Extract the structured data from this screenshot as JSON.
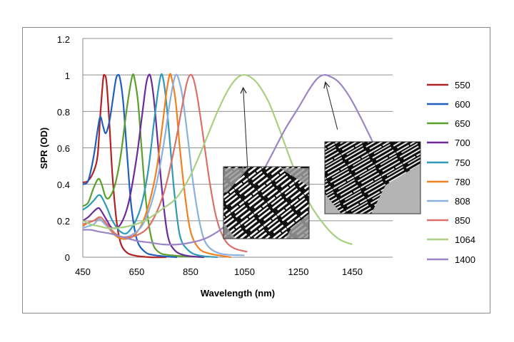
{
  "chart_data": {
    "type": "line",
    "title": "",
    "xlabel": "Wavelength (nm)",
    "ylabel": "SPR (OD)",
    "xlim": [
      450,
      1600
    ],
    "ylim": [
      0,
      1.2
    ],
    "x_ticks": [
      "450",
      "650",
      "850",
      "1050",
      "1250",
      "1450"
    ],
    "y_ticks": [
      "0",
      "0.2",
      "0.4",
      "0.6",
      "0.8",
      "1",
      "1.2"
    ],
    "grid": "horizontal",
    "legend_position": "right",
    "series": [
      {
        "name": "550",
        "color": "#b22222",
        "points": [
          [
            450,
            0.41
          ],
          [
            470,
            0.42
          ],
          [
            490,
            0.47
          ],
          [
            505,
            0.56
          ],
          [
            515,
            0.78
          ],
          [
            525,
            0.97
          ],
          [
            530,
            1.0
          ],
          [
            538,
            0.96
          ],
          [
            548,
            0.75
          ],
          [
            560,
            0.45
          ],
          [
            575,
            0.2
          ],
          [
            590,
            0.08
          ],
          [
            610,
            0.03
          ],
          [
            640,
            0.01
          ],
          [
            700,
            0.0
          ],
          [
            760,
            0.0
          ]
        ]
      },
      {
        "name": "600",
        "color": "#1f5fbf",
        "points": [
          [
            450,
            0.4
          ],
          [
            470,
            0.42
          ],
          [
            490,
            0.55
          ],
          [
            505,
            0.7
          ],
          [
            515,
            0.77
          ],
          [
            525,
            0.72
          ],
          [
            535,
            0.68
          ],
          [
            548,
            0.74
          ],
          [
            560,
            0.85
          ],
          [
            572,
            0.97
          ],
          [
            580,
            1.0
          ],
          [
            588,
            0.98
          ],
          [
            600,
            0.85
          ],
          [
            615,
            0.55
          ],
          [
            630,
            0.28
          ],
          [
            650,
            0.1
          ],
          [
            680,
            0.03
          ],
          [
            720,
            0.01
          ],
          [
            800,
            0.0
          ]
        ]
      },
      {
        "name": "650",
        "color": "#5aa02c",
        "points": [
          [
            450,
            0.28
          ],
          [
            470,
            0.3
          ],
          [
            490,
            0.38
          ],
          [
            508,
            0.43
          ],
          [
            520,
            0.4
          ],
          [
            535,
            0.33
          ],
          [
            550,
            0.33
          ],
          [
            570,
            0.4
          ],
          [
            590,
            0.55
          ],
          [
            610,
            0.78
          ],
          [
            625,
            0.93
          ],
          [
            635,
            1.0
          ],
          [
            642,
            0.98
          ],
          [
            655,
            0.85
          ],
          [
            668,
            0.6
          ],
          [
            685,
            0.3
          ],
          [
            705,
            0.1
          ],
          [
            730,
            0.03
          ],
          [
            780,
            0.01
          ],
          [
            900,
            0.0
          ]
        ]
      },
      {
        "name": "700",
        "color": "#6a2c9c",
        "points": [
          [
            450,
            0.2
          ],
          [
            470,
            0.22
          ],
          [
            490,
            0.25
          ],
          [
            508,
            0.27
          ],
          [
            520,
            0.25
          ],
          [
            540,
            0.2
          ],
          [
            560,
            0.16
          ],
          [
            590,
            0.18
          ],
          [
            620,
            0.3
          ],
          [
            650,
            0.55
          ],
          [
            670,
            0.78
          ],
          [
            685,
            0.95
          ],
          [
            695,
            1.0
          ],
          [
            703,
            0.98
          ],
          [
            715,
            0.85
          ],
          [
            730,
            0.6
          ],
          [
            745,
            0.35
          ],
          [
            765,
            0.12
          ],
          [
            790,
            0.04
          ],
          [
            830,
            0.01
          ],
          [
            900,
            0.0
          ]
        ]
      },
      {
        "name": "750",
        "color": "#2e9ab8",
        "points": [
          [
            450,
            0.26
          ],
          [
            470,
            0.28
          ],
          [
            490,
            0.31
          ],
          [
            508,
            0.34
          ],
          [
            520,
            0.33
          ],
          [
            540,
            0.27
          ],
          [
            560,
            0.2
          ],
          [
            590,
            0.14
          ],
          [
            620,
            0.14
          ],
          [
            660,
            0.25
          ],
          [
            690,
            0.45
          ],
          [
            715,
            0.75
          ],
          [
            730,
            0.92
          ],
          [
            740,
            1.0
          ],
          [
            748,
            0.98
          ],
          [
            760,
            0.85
          ],
          [
            775,
            0.6
          ],
          [
            790,
            0.35
          ],
          [
            810,
            0.12
          ],
          [
            840,
            0.04
          ],
          [
            880,
            0.01
          ],
          [
            950,
            0.0
          ]
        ]
      },
      {
        "name": "780",
        "color": "#f08020",
        "points": [
          [
            450,
            0.17
          ],
          [
            470,
            0.19
          ],
          [
            490,
            0.2
          ],
          [
            510,
            0.21
          ],
          [
            520,
            0.2
          ],
          [
            540,
            0.17
          ],
          [
            570,
            0.12
          ],
          [
            600,
            0.1
          ],
          [
            640,
            0.12
          ],
          [
            680,
            0.22
          ],
          [
            720,
            0.45
          ],
          [
            745,
            0.72
          ],
          [
            760,
            0.9
          ],
          [
            772,
            1.0
          ],
          [
            780,
            0.98
          ],
          [
            795,
            0.85
          ],
          [
            810,
            0.6
          ],
          [
            830,
            0.33
          ],
          [
            850,
            0.14
          ],
          [
            880,
            0.05
          ],
          [
            920,
            0.02
          ],
          [
            1000,
            0.0
          ]
        ]
      },
      {
        "name": "808",
        "color": "#8ab0e0",
        "points": [
          [
            450,
            0.16
          ],
          [
            470,
            0.17
          ],
          [
            490,
            0.18
          ],
          [
            510,
            0.21
          ],
          [
            520,
            0.2
          ],
          [
            540,
            0.17
          ],
          [
            570,
            0.13
          ],
          [
            600,
            0.11
          ],
          [
            640,
            0.13
          ],
          [
            680,
            0.2
          ],
          [
            720,
            0.38
          ],
          [
            750,
            0.62
          ],
          [
            770,
            0.82
          ],
          [
            785,
            0.95
          ],
          [
            795,
            1.0
          ],
          [
            805,
            0.98
          ],
          [
            820,
            0.88
          ],
          [
            840,
            0.65
          ],
          [
            860,
            0.4
          ],
          [
            885,
            0.18
          ],
          [
            910,
            0.07
          ],
          [
            960,
            0.02
          ],
          [
            1050,
            0.01
          ]
        ]
      },
      {
        "name": "850",
        "color": "#d9706a",
        "points": [
          [
            450,
            0.18
          ],
          [
            470,
            0.19
          ],
          [
            490,
            0.2
          ],
          [
            515,
            0.22
          ],
          [
            540,
            0.18
          ],
          [
            570,
            0.13
          ],
          [
            600,
            0.11
          ],
          [
            650,
            0.12
          ],
          [
            700,
            0.18
          ],
          [
            750,
            0.35
          ],
          [
            790,
            0.6
          ],
          [
            815,
            0.8
          ],
          [
            835,
            0.95
          ],
          [
            848,
            1.0
          ],
          [
            860,
            0.98
          ],
          [
            875,
            0.88
          ],
          [
            895,
            0.68
          ],
          [
            920,
            0.42
          ],
          [
            945,
            0.22
          ],
          [
            975,
            0.1
          ],
          [
            1010,
            0.05
          ],
          [
            1060,
            0.03
          ]
        ]
      },
      {
        "name": "1064",
        "color": "#a8d080",
        "points": [
          [
            450,
            0.2
          ],
          [
            480,
            0.18
          ],
          [
            510,
            0.17
          ],
          [
            540,
            0.16
          ],
          [
            570,
            0.16
          ],
          [
            620,
            0.17
          ],
          [
            680,
            0.2
          ],
          [
            750,
            0.27
          ],
          [
            800,
            0.33
          ],
          [
            850,
            0.45
          ],
          [
            900,
            0.62
          ],
          [
            950,
            0.8
          ],
          [
            990,
            0.92
          ],
          [
            1020,
            0.98
          ],
          [
            1045,
            1.0
          ],
          [
            1070,
            0.99
          ],
          [
            1100,
            0.95
          ],
          [
            1140,
            0.85
          ],
          [
            1180,
            0.7
          ],
          [
            1230,
            0.5
          ],
          [
            1290,
            0.3
          ],
          [
            1350,
            0.17
          ],
          [
            1400,
            0.1
          ],
          [
            1450,
            0.07
          ]
        ]
      },
      {
        "name": "1400",
        "color": "#9b85c4",
        "points": [
          [
            450,
            0.15
          ],
          [
            480,
            0.15
          ],
          [
            510,
            0.14
          ],
          [
            550,
            0.13
          ],
          [
            600,
            0.11
          ],
          [
            650,
            0.09
          ],
          [
            700,
            0.08
          ],
          [
            750,
            0.07
          ],
          [
            800,
            0.07
          ],
          [
            850,
            0.08
          ],
          [
            900,
            0.1
          ],
          [
            950,
            0.14
          ],
          [
            1000,
            0.2
          ],
          [
            1050,
            0.3
          ],
          [
            1100,
            0.42
          ],
          [
            1150,
            0.56
          ],
          [
            1200,
            0.7
          ],
          [
            1250,
            0.82
          ],
          [
            1290,
            0.92
          ],
          [
            1320,
            0.98
          ],
          [
            1345,
            1.0
          ],
          [
            1370,
            0.99
          ],
          [
            1400,
            0.96
          ],
          [
            1440,
            0.88
          ],
          [
            1480,
            0.77
          ],
          [
            1520,
            0.65
          ],
          [
            1545,
            0.57
          ]
        ]
      }
    ],
    "annotations": [
      {
        "type": "arrow",
        "from": [
          1065,
          0.4
        ],
        "to": [
          1045,
          0.93
        ]
      },
      {
        "type": "arrow",
        "from": [
          1395,
          0.7
        ],
        "to": [
          1350,
          0.96
        ]
      }
    ],
    "insets": [
      {
        "type": "tem-micrograph",
        "x_range": [
          1040,
          1330
        ],
        "y_range": [
          0.1,
          0.5
        ]
      },
      {
        "type": "tem-micrograph",
        "x_range": [
          1375,
          1675
        ],
        "y_range": [
          0.24,
          0.64
        ]
      }
    ]
  }
}
